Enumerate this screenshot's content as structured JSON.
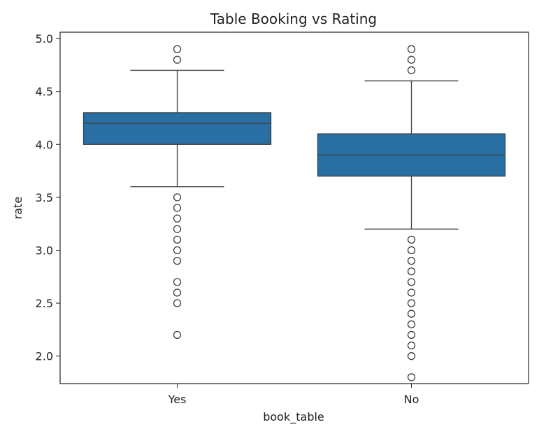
{
  "chart_data": {
    "type": "box",
    "title": "Table Booking vs Rating",
    "xlabel": "book_table",
    "ylabel": "rate",
    "ylim": [
      1.74,
      5.06
    ],
    "yticks": [
      "2.0",
      "2.5",
      "3.0",
      "3.5",
      "4.0",
      "4.5",
      "5.0"
    ],
    "grid": false,
    "box_color": "#2a6fa3",
    "categories": [
      "Yes",
      "No"
    ],
    "boxes": [
      {
        "category": "Yes",
        "whisker_low": 3.6,
        "q1": 4.0,
        "median": 4.2,
        "q3": 4.3,
        "whisker_high": 4.7,
        "outliers": [
          4.8,
          4.9,
          3.5,
          3.4,
          3.3,
          3.2,
          3.1,
          3.0,
          2.9,
          2.7,
          2.6,
          2.5,
          2.2
        ]
      },
      {
        "category": "No",
        "whisker_low": 3.2,
        "q1": 3.7,
        "median": 3.9,
        "q3": 4.1,
        "whisker_high": 4.6,
        "outliers": [
          4.7,
          4.8,
          4.9,
          3.1,
          3.0,
          2.9,
          2.8,
          2.7,
          2.6,
          2.5,
          2.4,
          2.3,
          2.2,
          2.1,
          2.0,
          1.8
        ]
      }
    ]
  }
}
